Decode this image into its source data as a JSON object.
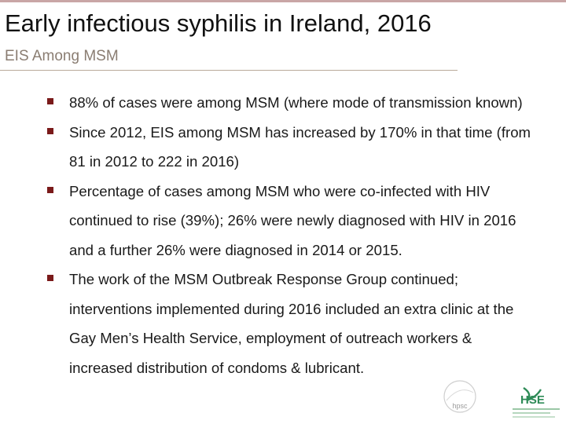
{
  "slide": {
    "title": "Early infectious syphilis in Ireland, 2016",
    "subtitle": "EIS Among MSM",
    "bullets": [
      "88% of cases were among MSM (where mode of transmission known)",
      "Since 2012, EIS among MSM has increased by 170% in that time (from 81 in 2012 to 222 in 2016)",
      "Percentage of cases among MSM who were co-infected with HIV continued to rise (39%); 26% were newly diagnosed with HIV in 2016 and a further 26% were diagnosed in 2014 or 2015.",
      "The work of the MSM Outbreak Response Group continued; interventions implemented during 2016 included an extra clinic at the Gay Men’s Health Service, employment of outreach workers & increased distribution of condoms & lubricant."
    ]
  },
  "logos": {
    "hpsc": "hpsc",
    "hse": "HSE",
    "hse_icon": "hse-logo-icon",
    "hpsc_icon": "hpsc-logo-icon"
  },
  "colors": {
    "accent": "#7a1a1a",
    "subtitle": "#8a7d72",
    "rule": "#b9a99a",
    "hse_green": "#2e8b57"
  }
}
